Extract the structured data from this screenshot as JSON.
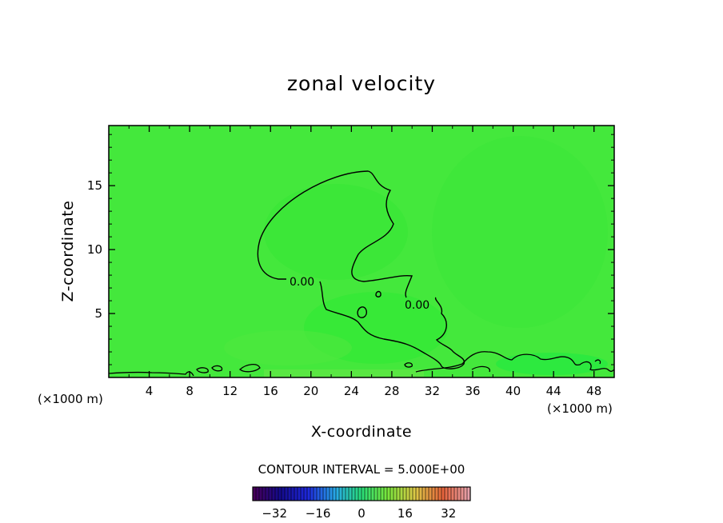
{
  "chart_data": {
    "type": "contour",
    "title": "zonal velocity",
    "xlabel": "X-coordinate",
    "ylabel": "Z-coordinate",
    "x_unit": "(×1000 m)",
    "xlim": [
      0,
      50
    ],
    "ylim": [
      0,
      19.7
    ],
    "x_ticks": [
      4,
      8,
      12,
      16,
      20,
      24,
      28,
      32,
      36,
      40,
      44,
      48
    ],
    "y_ticks": [
      5,
      10,
      15
    ],
    "contour_interval_label": "CONTOUR INTERVAL = 5.000E+00",
    "contour_labels": [
      "0.00",
      "0.00"
    ],
    "colorbar": {
      "range": [
        -40,
        40
      ],
      "tick_values": [
        -32,
        -16,
        0,
        16,
        32
      ],
      "tick_labels": [
        "−32",
        "−16",
        "0",
        "16",
        "32"
      ]
    },
    "field_colors": {
      "background": "#44e83c",
      "positive_patch": "#3ee63a",
      "negative_patch": "#22ea30",
      "contour_line": "#000000"
    }
  }
}
